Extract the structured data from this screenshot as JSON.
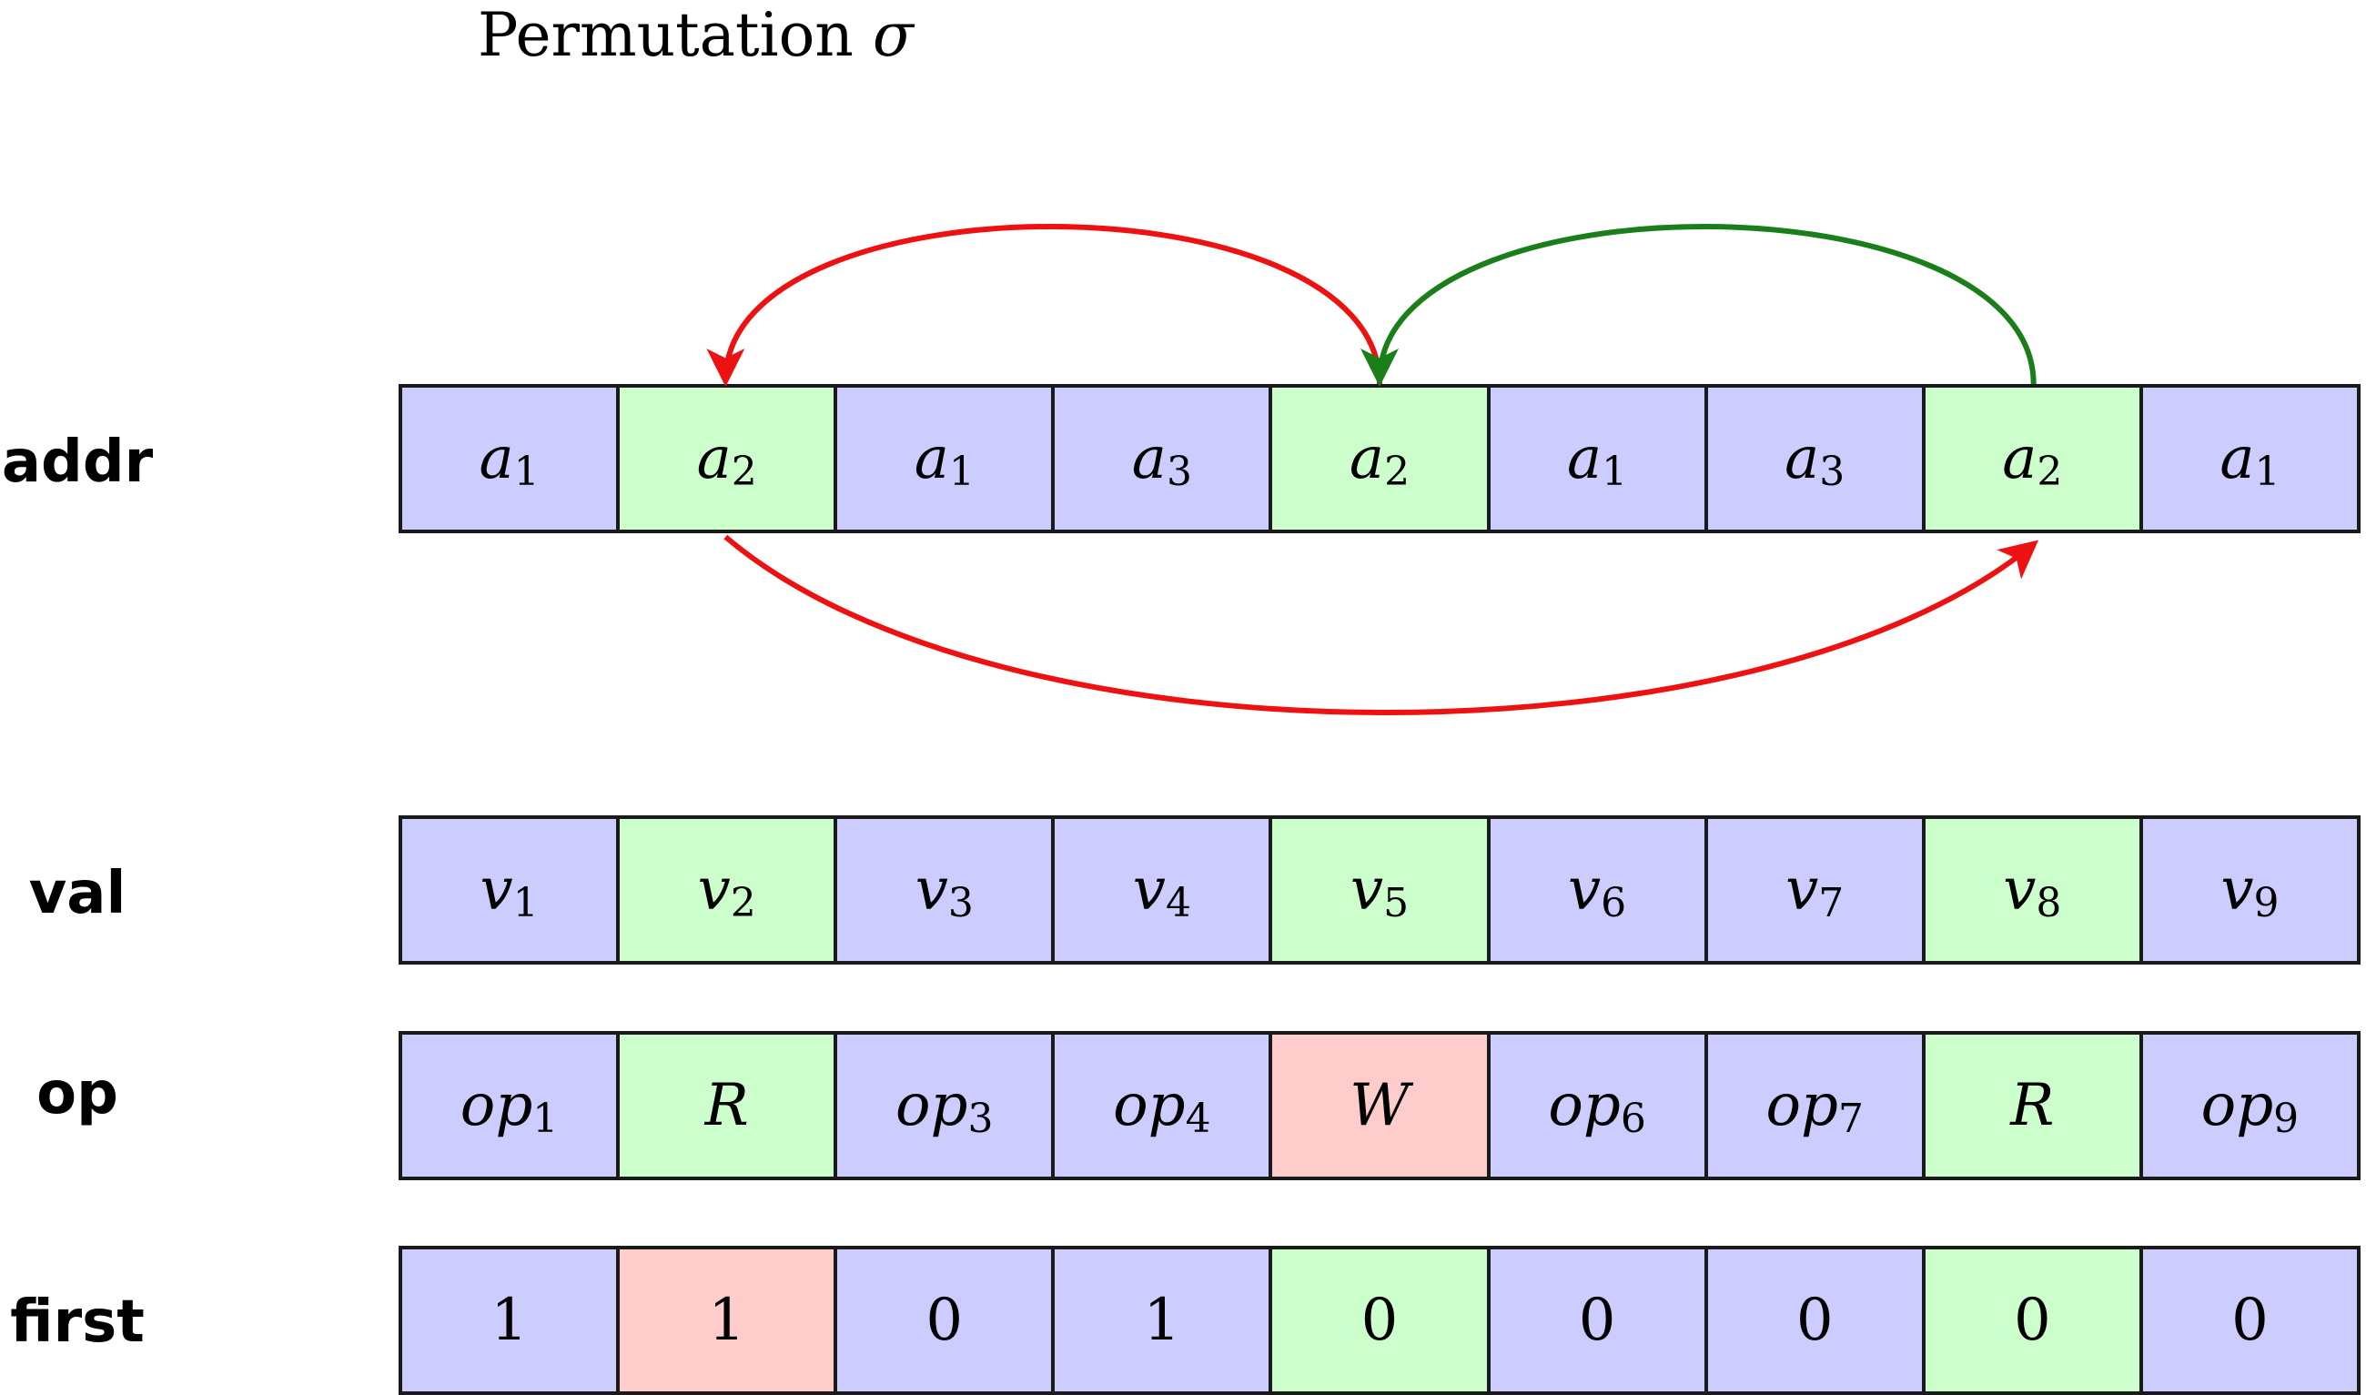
{
  "title": {
    "text": "Permutation",
    "symbol": "σ"
  },
  "colors": {
    "blue": "#ccccff",
    "green": "#ccffcc",
    "red": "#ffcccc",
    "arrow_red": "#ee1111",
    "arrow_green": "#1a7f1a"
  },
  "rows": [
    {
      "label": "addr",
      "cells": [
        {
          "base": "a",
          "sub": "1",
          "color": "blue"
        },
        {
          "base": "a",
          "sub": "2",
          "color": "green"
        },
        {
          "base": "a",
          "sub": "1",
          "color": "blue"
        },
        {
          "base": "a",
          "sub": "3",
          "color": "blue"
        },
        {
          "base": "a",
          "sub": "2",
          "color": "green"
        },
        {
          "base": "a",
          "sub": "1",
          "color": "blue"
        },
        {
          "base": "a",
          "sub": "3",
          "color": "blue"
        },
        {
          "base": "a",
          "sub": "2",
          "color": "green"
        },
        {
          "base": "a",
          "sub": "1",
          "color": "blue"
        }
      ]
    },
    {
      "label": "val",
      "cells": [
        {
          "base": "v",
          "sub": "1",
          "color": "blue"
        },
        {
          "base": "v",
          "sub": "2",
          "color": "green"
        },
        {
          "base": "v",
          "sub": "3",
          "color": "blue"
        },
        {
          "base": "v",
          "sub": "4",
          "color": "blue"
        },
        {
          "base": "v",
          "sub": "5",
          "color": "green"
        },
        {
          "base": "v",
          "sub": "6",
          "color": "blue"
        },
        {
          "base": "v",
          "sub": "7",
          "color": "blue"
        },
        {
          "base": "v",
          "sub": "8",
          "color": "green"
        },
        {
          "base": "v",
          "sub": "9",
          "color": "blue"
        }
      ]
    },
    {
      "label": "op",
      "cells": [
        {
          "base": "op",
          "sub": "1",
          "color": "blue"
        },
        {
          "base": "R",
          "sub": "",
          "color": "green"
        },
        {
          "base": "op",
          "sub": "3",
          "color": "blue"
        },
        {
          "base": "op",
          "sub": "4",
          "color": "blue"
        },
        {
          "base": "W",
          "sub": "",
          "color": "red"
        },
        {
          "base": "op",
          "sub": "6",
          "color": "blue"
        },
        {
          "base": "op",
          "sub": "7",
          "color": "blue"
        },
        {
          "base": "R",
          "sub": "",
          "color": "green"
        },
        {
          "base": "op",
          "sub": "9",
          "color": "blue"
        }
      ]
    },
    {
      "label": "first",
      "cells": [
        {
          "base": "1",
          "sub": "",
          "color": "blue",
          "plain": true
        },
        {
          "base": "1",
          "sub": "",
          "color": "red",
          "plain": true
        },
        {
          "base": "0",
          "sub": "",
          "color": "blue",
          "plain": true
        },
        {
          "base": "1",
          "sub": "",
          "color": "blue",
          "plain": true
        },
        {
          "base": "0",
          "sub": "",
          "color": "green",
          "plain": true
        },
        {
          "base": "0",
          "sub": "",
          "color": "blue",
          "plain": true
        },
        {
          "base": "0",
          "sub": "",
          "color": "blue",
          "plain": true
        },
        {
          "base": "0",
          "sub": "",
          "color": "green",
          "plain": true
        },
        {
          "base": "0",
          "sub": "",
          "color": "blue",
          "plain": true
        }
      ]
    }
  ],
  "arrows": [
    {
      "from": 4,
      "to": 1,
      "side": "top",
      "color": "arrow_red"
    },
    {
      "from": 7,
      "to": 4,
      "side": "top",
      "color": "arrow_green"
    },
    {
      "from": 1,
      "to": 7,
      "side": "bottom",
      "color": "arrow_red"
    }
  ]
}
